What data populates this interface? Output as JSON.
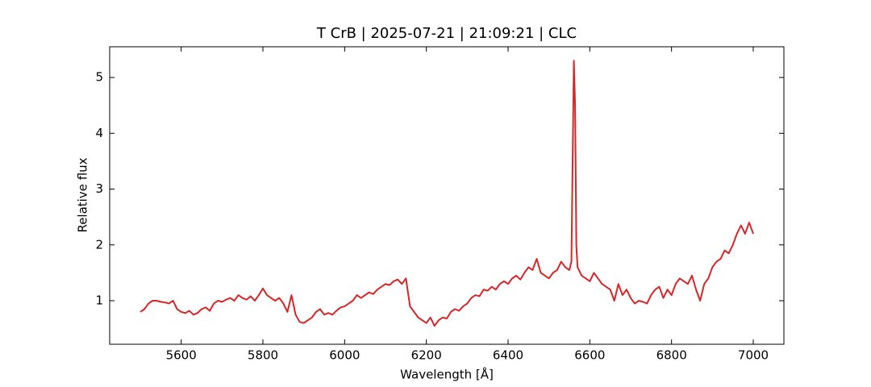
{
  "chart_data": {
    "type": "line",
    "title": "T CrB | 2025-07-21 | 21:09:21 | CLC",
    "xlabel": "Wavelength [Å]",
    "ylabel": "Relative flux",
    "x": [
      5500,
      5510,
      5520,
      5530,
      5540,
      5550,
      5560,
      5570,
      5580,
      5590,
      5600,
      5610,
      5620,
      5630,
      5640,
      5650,
      5660,
      5670,
      5680,
      5690,
      5700,
      5710,
      5720,
      5730,
      5740,
      5750,
      5760,
      5770,
      5780,
      5790,
      5800,
      5810,
      5820,
      5830,
      5840,
      5850,
      5860,
      5870,
      5880,
      5890,
      5900,
      5910,
      5920,
      5930,
      5940,
      5950,
      5960,
      5970,
      5980,
      5990,
      6000,
      6010,
      6020,
      6030,
      6040,
      6050,
      6060,
      6070,
      6080,
      6090,
      6100,
      6110,
      6120,
      6130,
      6140,
      6150,
      6160,
      6170,
      6180,
      6190,
      6200,
      6210,
      6220,
      6230,
      6240,
      6250,
      6260,
      6270,
      6280,
      6290,
      6300,
      6310,
      6320,
      6330,
      6340,
      6350,
      6360,
      6370,
      6380,
      6390,
      6400,
      6410,
      6420,
      6430,
      6440,
      6450,
      6460,
      6470,
      6480,
      6490,
      6500,
      6510,
      6520,
      6530,
      6540,
      6550,
      6555,
      6558,
      6561,
      6564,
      6567,
      6570,
      6580,
      6590,
      6600,
      6610,
      6620,
      6630,
      6640,
      6650,
      6660,
      6670,
      6680,
      6690,
      6700,
      6710,
      6720,
      6730,
      6740,
      6750,
      6760,
      6770,
      6780,
      6790,
      6800,
      6810,
      6820,
      6830,
      6840,
      6850,
      6860,
      6870,
      6880,
      6890,
      6900,
      6910,
      6920,
      6930,
      6940,
      6950,
      6960,
      6970,
      6980,
      6990,
      7000
    ],
    "series": [
      {
        "name": "T CrB",
        "color": "#d62728",
        "values": [
          0.8,
          0.85,
          0.95,
          1.0,
          1.0,
          0.98,
          0.97,
          0.95,
          1.0,
          0.85,
          0.8,
          0.78,
          0.82,
          0.75,
          0.78,
          0.85,
          0.88,
          0.82,
          0.95,
          1.0,
          0.98,
          1.02,
          1.05,
          1.0,
          1.1,
          1.05,
          1.02,
          1.08,
          1.0,
          1.1,
          1.22,
          1.1,
          1.05,
          1.0,
          1.05,
          0.95,
          0.8,
          1.1,
          0.75,
          0.62,
          0.6,
          0.65,
          0.7,
          0.8,
          0.85,
          0.75,
          0.78,
          0.75,
          0.82,
          0.88,
          0.9,
          0.95,
          1.0,
          1.1,
          1.05,
          1.1,
          1.15,
          1.12,
          1.2,
          1.25,
          1.3,
          1.28,
          1.35,
          1.38,
          1.3,
          1.4,
          0.9,
          0.8,
          0.7,
          0.65,
          0.6,
          0.7,
          0.55,
          0.65,
          0.7,
          0.68,
          0.8,
          0.85,
          0.82,
          0.9,
          0.95,
          1.05,
          1.1,
          1.08,
          1.2,
          1.18,
          1.25,
          1.2,
          1.3,
          1.35,
          1.3,
          1.4,
          1.45,
          1.38,
          1.5,
          1.6,
          1.55,
          1.75,
          1.5,
          1.45,
          1.4,
          1.5,
          1.55,
          1.7,
          1.6,
          1.55,
          1.7,
          3.5,
          5.3,
          4.5,
          2.0,
          1.6,
          1.45,
          1.4,
          1.35,
          1.5,
          1.4,
          1.3,
          1.25,
          1.2,
          1.0,
          1.3,
          1.1,
          1.2,
          1.05,
          0.95,
          1.0,
          0.98,
          0.95,
          1.1,
          1.2,
          1.25,
          1.05,
          1.2,
          1.1,
          1.3,
          1.4,
          1.35,
          1.3,
          1.45,
          1.2,
          1.0,
          1.3,
          1.4,
          1.6,
          1.7,
          1.75,
          1.9,
          1.85,
          2.0,
          2.2,
          2.35,
          2.2,
          2.4,
          2.2
        ]
      }
    ],
    "xlim": [
      5425,
      7075
    ],
    "ylim": [
      0.22,
      5.55
    ],
    "xticks": [
      5600,
      5800,
      6000,
      6200,
      6400,
      6600,
      6800,
      7000
    ],
    "yticks": [
      1,
      2,
      3,
      4,
      5
    ],
    "grid": false
  }
}
